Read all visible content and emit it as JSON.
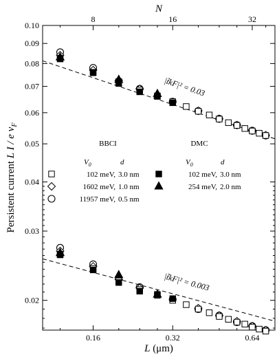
{
  "chart_data": {
    "type": "scatter",
    "xscale": "log",
    "yscale": "log",
    "xlabel_prefix": "L",
    "xlabel_unit": "(μm)",
    "ylabel_prefix": "Persistent current",
    "ylabel_math": "L I / e v",
    "ylabel_sub": "F",
    "top_label": "N",
    "xlim": [
      0.103,
      0.78
    ],
    "ylim": [
      0.0168,
      0.1
    ],
    "x_ticks": [
      {
        "value": 0.16,
        "label": "0.16"
      },
      {
        "value": 0.32,
        "label": "0.32"
      },
      {
        "value": 0.64,
        "label": "0.64"
      }
    ],
    "top_ticks": [
      {
        "value": 0.16,
        "label": "8"
      },
      {
        "value": 0.32,
        "label": "16"
      },
      {
        "value": 0.64,
        "label": "32"
      }
    ],
    "y_ticks": [
      {
        "value": 0.02,
        "label": "0.02"
      },
      {
        "value": 0.03,
        "label": "0.03"
      },
      {
        "value": 0.04,
        "label": "0.04"
      },
      {
        "value": 0.05,
        "label": "0.05"
      },
      {
        "value": 0.06,
        "label": "0.06"
      },
      {
        "value": 0.07,
        "label": "0.07"
      },
      {
        "value": 0.08,
        "label": "0.08"
      },
      {
        "value": 0.09,
        "label": "0.09"
      },
      {
        "value": 0.1,
        "label": "0.10"
      }
    ],
    "fit_lines": [
      {
        "x": [
          0.103,
          0.78
        ],
        "y": [
          0.0813,
          0.0515
        ],
        "label": "|t̃kF|² = 0.03",
        "label_at": [
          0.296,
          0.0715
        ]
      },
      {
        "x": [
          0.103,
          0.78
        ],
        "y": [
          0.0255,
          0.0177
        ],
        "label": "|t̃kF|² = 0.003",
        "label_at": [
          0.296,
          0.0227
        ]
      }
    ],
    "legend": {
      "group_bbci": "BBCI",
      "group_dmc": "DMC",
      "col_v0": "V",
      "col_v0_sub": "0",
      "col_d": "d",
      "entries_bbci": [
        {
          "marker": "open-square",
          "v0": "102 meV,",
          "d": "3.0 nm"
        },
        {
          "marker": "open-diamond",
          "v0": "1602 meV,",
          "d": "1.0 nm"
        },
        {
          "marker": "open-circle",
          "v0": "11957 meV,",
          "d": "0.5 nm"
        }
      ],
      "entries_dmc": [
        {
          "marker": "filled-square",
          "v0": "102 meV,",
          "d": "3.0 nm"
        },
        {
          "marker": "filled-triangle",
          "v0": "254 meV,",
          "d": "2.0 nm"
        }
      ]
    },
    "series": [
      {
        "name": "BBCI 102 meV, 3.0 nm",
        "marker": "open-square",
        "x": [
          0.12,
          0.16,
          0.2,
          0.24,
          0.28,
          0.32,
          0.36,
          0.4,
          0.44,
          0.48,
          0.52,
          0.56,
          0.6,
          0.64,
          0.68,
          0.72
        ],
        "y": [
          0.0825,
          0.076,
          0.072,
          0.0685,
          0.0662,
          0.064,
          0.0622,
          0.0605,
          0.0592,
          0.0578,
          0.0566,
          0.0557,
          0.0547,
          0.0539,
          0.0532,
          0.0525
        ],
        "y_low": [
          0.0262,
          0.0241,
          0.0224,
          0.0213,
          0.0206,
          0.02,
          0.0195,
          0.019,
          0.0186,
          0.0182,
          0.0179,
          0.0176,
          0.0174,
          0.0171,
          0.0169,
          0.0167
        ]
      },
      {
        "name": "BBCI 1602 meV, 1.0 nm",
        "marker": "open-diamond",
        "x": [
          0.12,
          0.16,
          0.2,
          0.24,
          0.4,
          0.48,
          0.56,
          0.64,
          0.72
        ],
        "y": [
          0.084,
          0.077,
          0.0725,
          0.069,
          0.0607,
          0.0579,
          0.0558,
          0.054,
          0.0526
        ],
        "y_low": [
          0.0267,
          0.0244,
          0.0226,
          0.0215,
          0.0191,
          0.0183,
          0.0177,
          0.0172,
          0.0168
        ]
      },
      {
        "name": "BBCI 11957 meV, 0.5 nm",
        "marker": "open-circle",
        "x": [
          0.12,
          0.16,
          0.24,
          0.32,
          0.4,
          0.48,
          0.56,
          0.64,
          0.72
        ],
        "y": [
          0.0855,
          0.078,
          0.069,
          0.064,
          0.0606,
          0.0579,
          0.0558,
          0.054,
          0.0525
        ],
        "y_low": [
          0.0272,
          0.0247,
          0.0216,
          0.0201,
          0.019,
          0.0183,
          0.0176,
          0.0172,
          0.0168
        ]
      },
      {
        "name": "DMC 102 meV, 3.0 nm",
        "marker": "filled-square",
        "x": [
          0.12,
          0.16,
          0.2,
          0.24,
          0.28,
          0.32
        ],
        "y": [
          0.0822,
          0.0758,
          0.0712,
          0.0678,
          0.066,
          0.0636
        ],
        "y_low": [
          0.0261,
          0.0239,
          0.0222,
          0.0211,
          0.0207,
          0.0202
        ]
      },
      {
        "name": "DMC 254 meV, 2.0 nm",
        "marker": "filled-triangle",
        "x": [
          0.12,
          0.2,
          0.28
        ],
        "y": [
          0.083,
          0.0728,
          0.067
        ],
        "y_low": [
          0.0264,
          0.0232,
          0.0207
        ]
      }
    ]
  }
}
